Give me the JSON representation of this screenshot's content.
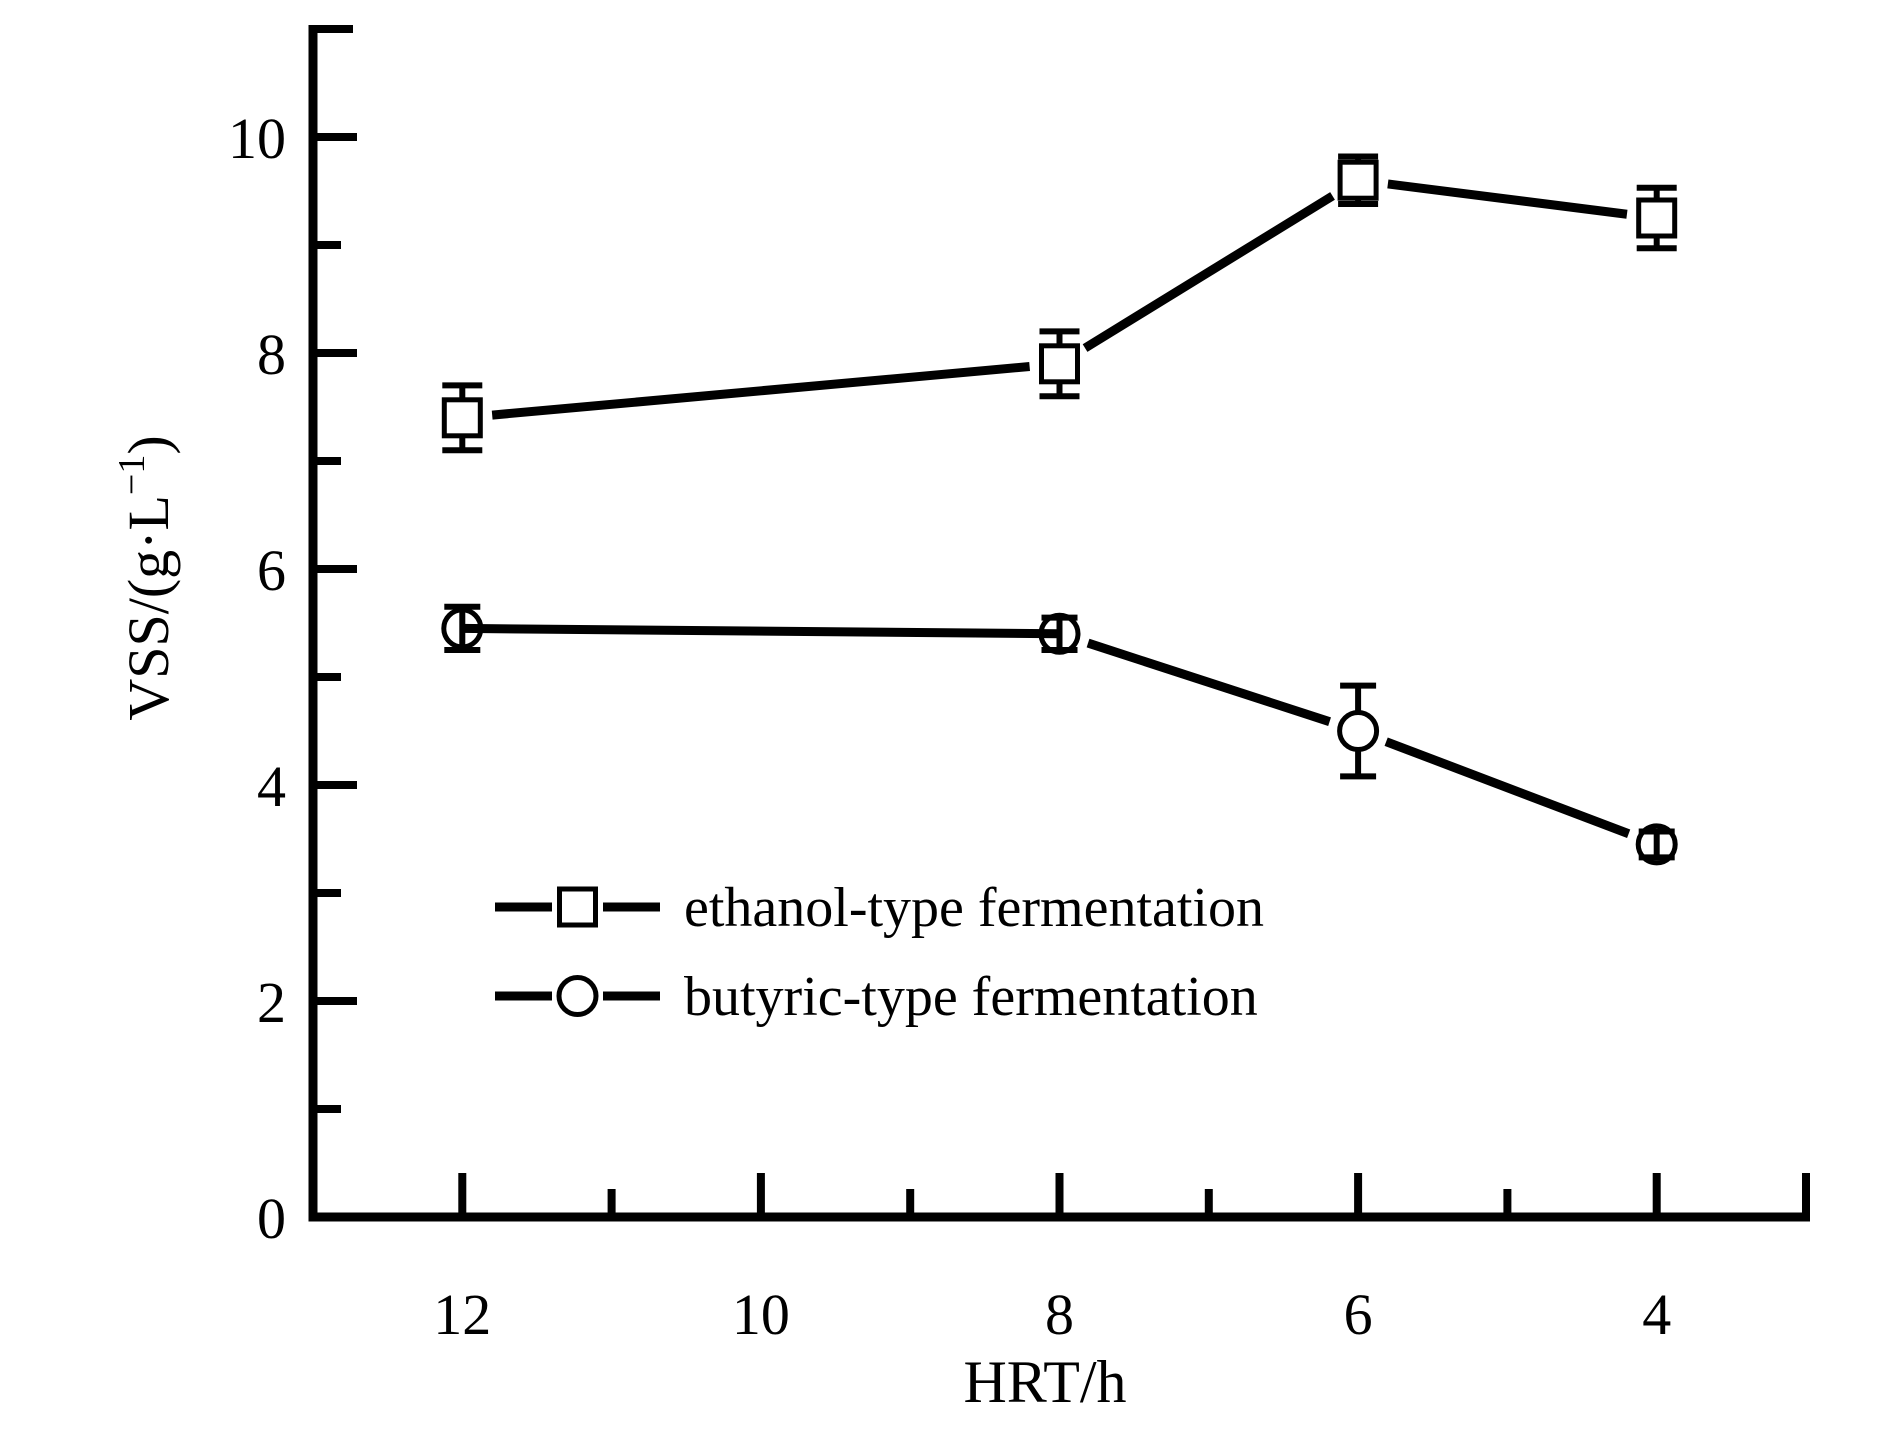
{
  "chart_data": {
    "type": "line",
    "title": "",
    "xlabel": "HRT/h",
    "ylabel": "VSS/(g·L⁻¹)",
    "ylabel_parts": [
      {
        "text": "VSS/(g·L"
      },
      {
        "text": "−1",
        "superscript": true
      },
      {
        "text": ")"
      }
    ],
    "x_axis": {
      "label": "HRT/h",
      "direction": "decreasing",
      "range": [
        13,
        3
      ],
      "major_ticks": [
        12,
        10,
        8,
        6,
        4
      ],
      "minor_ticks": [
        11,
        9,
        7,
        5
      ],
      "tick_labels": [
        "12",
        "10",
        "8",
        "6",
        "4"
      ]
    },
    "y_axis": {
      "label": "VSS/(g·L⁻¹)",
      "range": [
        0,
        11
      ],
      "major_ticks": [
        0,
        2,
        4,
        6,
        8,
        10
      ],
      "minor_ticks": [
        1,
        3,
        5,
        7,
        9
      ],
      "tick_labels": [
        "0",
        "2",
        "4",
        "6",
        "8",
        "10"
      ]
    },
    "series": [
      {
        "name": "ethanol-type fermentation",
        "marker": "square",
        "x": [
          12,
          8,
          6,
          4
        ],
        "y": [
          7.4,
          7.9,
          9.6,
          9.25
        ],
        "yerr": [
          0.3,
          0.3,
          0.22,
          0.28
        ]
      },
      {
        "name": "butyric-type fermentation",
        "marker": "circle",
        "x": [
          12,
          8,
          6,
          4
        ],
        "y": [
          5.45,
          5.4,
          4.5,
          3.45
        ],
        "yerr": [
          0.2,
          0.15,
          0.42,
          0.12
        ]
      }
    ],
    "legend": {
      "position": "inside-lower-left",
      "entries": [
        "ethanol-type fermentation",
        "butyric-type fermentation"
      ]
    },
    "colors": {
      "ink": "#000000",
      "background": "#ffffff"
    },
    "grid": false
  }
}
